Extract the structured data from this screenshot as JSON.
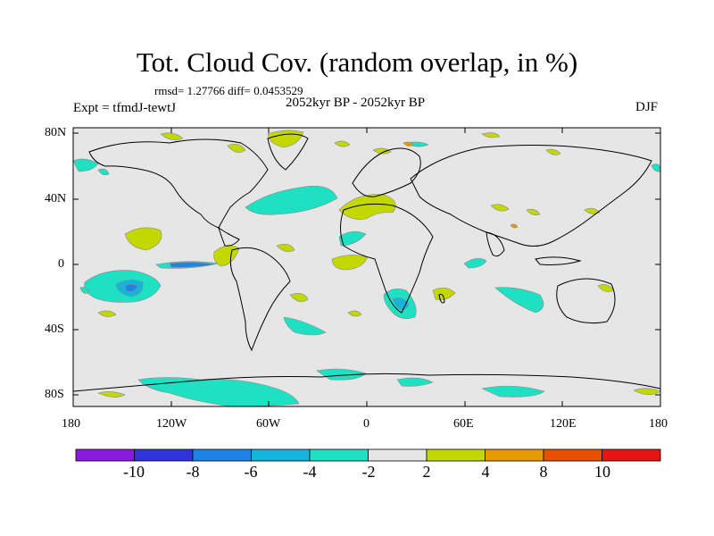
{
  "header": {
    "title": "Tot. Cloud Cov. (random overlap, in %)",
    "stats": "rmsd= 1.27766 diff= 0.0453529",
    "period": "2052kyr BP - 2052kyr BP",
    "experiment": "Expt = tfmdJ-tewtJ",
    "season": "DJF"
  },
  "map": {
    "lat_labels": [
      "80N",
      "40N",
      "0",
      "40S",
      "80S"
    ],
    "lon_labels": [
      "180",
      "120W",
      "60W",
      "0",
      "60E",
      "120E",
      "180"
    ],
    "background_color": "#e6e6e6"
  },
  "colorbar": {
    "labels": [
      "-10",
      "-8",
      "-6",
      "-4",
      "-2",
      "2",
      "4",
      "8",
      "10"
    ],
    "colors": [
      "#8a1ae0",
      "#3232dc",
      "#1e82e6",
      "#14b4dc",
      "#1ee1c3",
      "#e6e6e6",
      "#c3d700",
      "#e69b00",
      "#e65000",
      "#e61414"
    ]
  }
}
